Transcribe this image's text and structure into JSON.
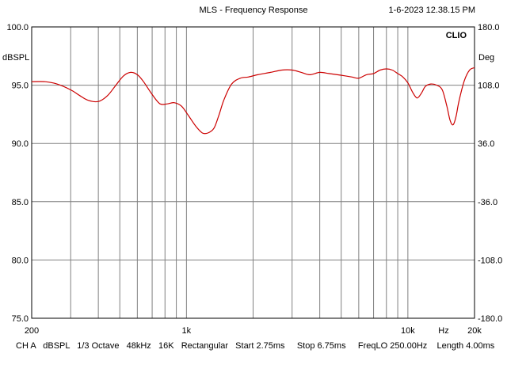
{
  "title": "MLS - Frequency Response",
  "timestamp": "1-6-2023 12.38.15 PM",
  "brand": "CLIO",
  "footer": "CH A   dBSPL   1/3 Octave   48kHz   16K   Rectangular   Start 2.75ms     Stop 6.75ms     FreqLO 250.00Hz    Length 4.00ms",
  "chart_data": {
    "type": "line",
    "title": "MLS - Frequency Response",
    "xlabel": "Hz",
    "ylabel": "dBSPL",
    "y2label": "Deg",
    "x_scale": "log",
    "xlim": [
      200,
      20000
    ],
    "ylim": [
      75,
      100
    ],
    "y2lim": [
      -180,
      180
    ],
    "grid": true,
    "x_ticks": [
      {
        "value": 200,
        "label": "200"
      },
      {
        "value": 1000,
        "label": "1k"
      },
      {
        "value": 10000,
        "label": "10k"
      },
      {
        "value": 20000,
        "label": "20k"
      }
    ],
    "y_ticks": [
      {
        "value": 100,
        "label": "100.0"
      },
      {
        "value": 95,
        "label": "95.0"
      },
      {
        "value": 90,
        "label": "90.0"
      },
      {
        "value": 85,
        "label": "85.0"
      },
      {
        "value": 80,
        "label": "80.0"
      },
      {
        "value": 75,
        "label": "75.0"
      }
    ],
    "y2_ticks": [
      {
        "value": 180,
        "label": "180.0"
      },
      {
        "value": 108,
        "label": "108.0"
      },
      {
        "value": 36,
        "label": "36.0"
      },
      {
        "value": -36,
        "label": "-36.0"
      },
      {
        "value": -108,
        "label": "-108.0"
      },
      {
        "value": -180,
        "label": "-180.0"
      }
    ],
    "series": [
      {
        "color": "#cc0000",
        "x": [
          200,
          230,
          260,
          300,
          330,
          360,
          400,
          440,
          480,
          520,
          560,
          600,
          640,
          700,
          760,
          820,
          880,
          950,
          1020,
          1100,
          1180,
          1250,
          1330,
          1400,
          1480,
          1600,
          1750,
          1900,
          2100,
          2400,
          2700,
          3000,
          3300,
          3600,
          4000,
          4400,
          4800,
          5200,
          5600,
          6000,
          6500,
          7000,
          7500,
          8000,
          8500,
          9000,
          9500,
          10000,
          10500,
          11000,
          11500,
          12000,
          12700,
          13500,
          14300,
          15000,
          15500,
          16000,
          16500,
          17000,
          18000,
          19000,
          20000
        ],
        "y": [
          95.3,
          95.3,
          95.1,
          94.6,
          94.1,
          93.7,
          93.6,
          94.1,
          95.0,
          95.8,
          96.1,
          95.9,
          95.3,
          94.2,
          93.4,
          93.4,
          93.5,
          93.2,
          92.4,
          91.5,
          90.9,
          90.9,
          91.3,
          92.4,
          93.8,
          95.1,
          95.6,
          95.7,
          95.9,
          96.1,
          96.3,
          96.3,
          96.1,
          95.9,
          96.1,
          96.0,
          95.9,
          95.8,
          95.7,
          95.6,
          95.9,
          96.0,
          96.3,
          96.4,
          96.3,
          96.0,
          95.7,
          95.2,
          94.4,
          93.9,
          94.3,
          94.9,
          95.1,
          95.0,
          94.6,
          93.2,
          92.0,
          91.6,
          92.3,
          93.6,
          95.4,
          96.3,
          96.5
        ]
      }
    ]
  }
}
